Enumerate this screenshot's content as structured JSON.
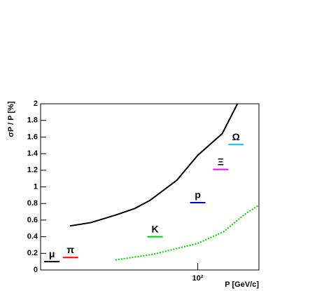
{
  "chart_data": {
    "type": "line",
    "x_label": "P [GeV/c]",
    "y_label": "σP / P [%]",
    "log_x": true,
    "xlim": [
      10,
      245
    ],
    "ylim": [
      0,
      2
    ],
    "xticks": [
      {
        "value": 100,
        "label": "10²"
      }
    ],
    "yticks": [
      0,
      0.2,
      0.4,
      0.6,
      0.8,
      1,
      1.2,
      1.4,
      1.6,
      1.8,
      2
    ],
    "series": [
      {
        "color": "#000000",
        "style": "solid",
        "x": [
          15.4,
          20.9,
          29.9,
          39.8,
          49.9,
          73.6,
          100,
          143,
          179
        ],
        "values": [
          0.53,
          0.57,
          0.66,
          0.74,
          0.84,
          1.08,
          1.38,
          1.64,
          2.0
        ]
      },
      {
        "color": "#00cc00",
        "style": "dotted",
        "x": [
          29.9,
          52.5,
          100,
          146,
          199,
          245
        ],
        "values": [
          0.12,
          0.19,
          0.32,
          0.46,
          0.67,
          0.78
        ]
      }
    ],
    "annotations": [
      {
        "text": "μ",
        "color": "#000000",
        "x": 11.8,
        "y": 0.1
      },
      {
        "text": "π",
        "color": "#ff0000",
        "x": 15.5,
        "y": 0.15
      },
      {
        "text": "K",
        "color": "#00cc00",
        "x": 53.5,
        "y": 0.4
      },
      {
        "text": "p",
        "color": "#0000cc",
        "x": 100,
        "y": 0.81
      },
      {
        "text": "Ξ",
        "color": "#ff00ff",
        "x": 140,
        "y": 1.21
      },
      {
        "text": "Ω",
        "color": "#00ccff",
        "x": 175,
        "y": 1.51
      }
    ]
  }
}
